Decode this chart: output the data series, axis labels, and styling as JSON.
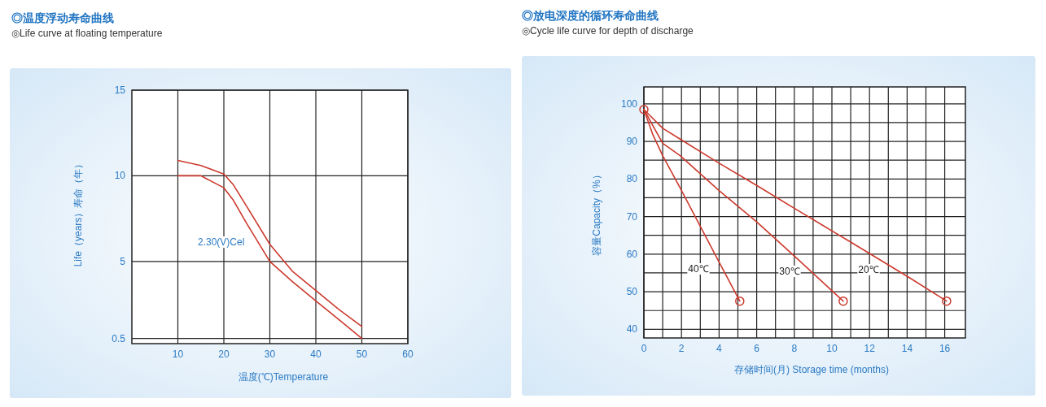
{
  "chart_data": [
    {
      "type": "line",
      "title": "◎温度浮动寿命曲线",
      "subtitle": "◎Life curve at floating temperature",
      "xlabel": "温度(℃)Temperature",
      "ylabel": "Life（years）寿命（年）",
      "xlim": [
        0,
        60
      ],
      "xticks": [
        10,
        20,
        30,
        40,
        50,
        60
      ],
      "ylim": [
        0.2,
        15
      ],
      "yticks": [
        0.5,
        5,
        10,
        15
      ],
      "grid": true,
      "series": [
        {
          "color": "#cc3a2e",
          "x": [
            10,
            15,
            20,
            22,
            25,
            30,
            35,
            40,
            45,
            50
          ],
          "values": [
            10.9,
            10.6,
            10.1,
            9.5,
            8.2,
            6.0,
            4.4,
            3.3,
            2.2,
            1.2
          ]
        },
        {
          "color": "#cc3a2e",
          "x": [
            10,
            15,
            20,
            22,
            25,
            30,
            35,
            40,
            45,
            50
          ],
          "values": [
            10.0,
            10.0,
            9.3,
            8.6,
            7.2,
            5.0,
            3.8,
            2.7,
            1.6,
            0.5
          ]
        }
      ],
      "annotations": [
        "2.30(V)Cel"
      ]
    },
    {
      "type": "line",
      "title": "◎放电深度的循环寿命曲线",
      "subtitle": "◎Cycle life curve for depth of discharge",
      "xlabel": "存储时间(月) Storage time (months)",
      "ylabel": "容量Capacity（%）",
      "xlim": [
        0,
        17.1
      ],
      "xticks": [
        0,
        {
          "value": 1,
          "label": null
        },
        2,
        {
          "value": 3,
          "label": null
        },
        4,
        {
          "value": 5,
          "label": null
        },
        6,
        {
          "value": 7,
          "label": null
        },
        8,
        {
          "value": 9,
          "label": null
        },
        10,
        {
          "value": 11,
          "label": null
        },
        12,
        {
          "value": 13,
          "label": null
        },
        14,
        {
          "value": 15,
          "label": null
        },
        16
      ],
      "ylim": [
        37.7,
        104.5
      ],
      "yticks": [
        40,
        {
          "value": 45,
          "label": null
        },
        50,
        {
          "value": 55,
          "label": null
        },
        60,
        {
          "value": 65,
          "label": null
        },
        70,
        {
          "value": 75,
          "label": null
        },
        80,
        {
          "value": 85,
          "label": null
        },
        90,
        {
          "value": 95,
          "label": null
        },
        100
      ],
      "grid": true,
      "series": [
        {
          "color": "#cc3a2e",
          "x": [
            0,
            0.46,
            1,
            1.93,
            4,
            5.1
          ],
          "values": [
            98.5,
            92,
            86.2,
            77.6,
            57.9,
            47.5
          ]
        },
        {
          "color": "#cc3a2e",
          "x": [
            0,
            1,
            1.93,
            4,
            6,
            8,
            10.6
          ],
          "values": [
            98.5,
            89.5,
            86.2,
            76.9,
            68.6,
            59.5,
            47.5
          ]
        },
        {
          "color": "#cc3a2e",
          "x": [
            0,
            1,
            1.93,
            4,
            6,
            8,
            11,
            14.1,
            16.1
          ],
          "values": [
            98.5,
            93.5,
            90.6,
            84.2,
            78.3,
            72.2,
            63.2,
            53.8,
            47.5
          ]
        },
        {
          "type": "scatter",
          "marker": "circle",
          "color": "#cc3a2e",
          "x": [
            0,
            5.1,
            10.6,
            16.1
          ],
          "values": [
            98.5,
            47.5,
            47.5,
            47.5
          ]
        }
      ],
      "annotations": [
        "40℃",
        "30℃",
        "20℃"
      ]
    }
  ]
}
